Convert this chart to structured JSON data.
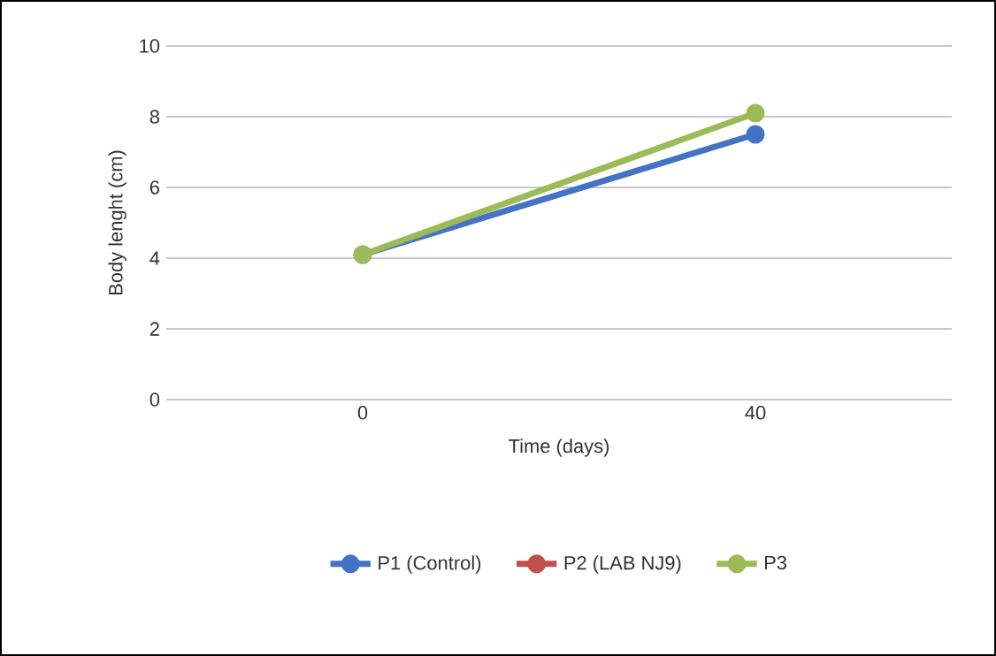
{
  "chart_data": {
    "type": "line",
    "xlabel": "Time (days)",
    "ylabel": "Body lenght (cm)",
    "categories": [
      "0",
      "40"
    ],
    "series": [
      {
        "name": "P1 (Control)",
        "color": "#4472c4",
        "values": [
          4.1,
          7.5
        ]
      },
      {
        "name": "P2 (LAB NJ9)",
        "color": "#c0504d",
        "values": [
          null,
          null
        ]
      },
      {
        "name": "P3",
        "color": "#9bbb59",
        "values": [
          4.1,
          8.1
        ]
      }
    ],
    "ylim": [
      0,
      10
    ],
    "yticks": [
      0,
      2,
      4,
      6,
      8,
      10
    ],
    "grid": "y",
    "legend": "bottom",
    "marker": "circle",
    "line_style": "solid"
  }
}
